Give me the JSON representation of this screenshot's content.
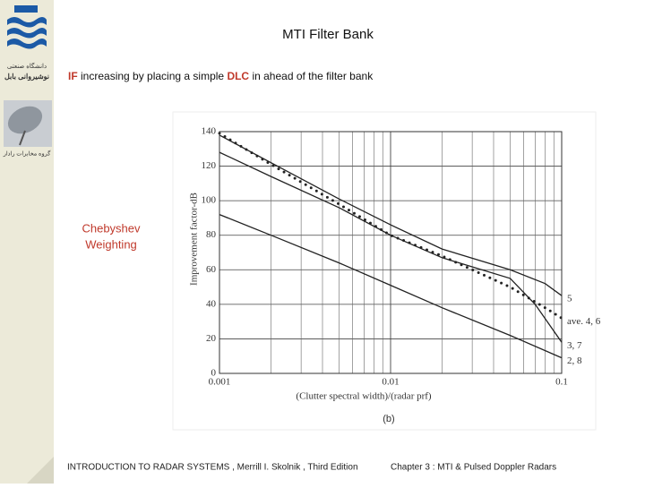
{
  "slide": {
    "title": "MTI Filter Bank",
    "subtitle": [
      "IF",
      " increasing by placing a simple ",
      "DLC",
      " in ahead of the filter bank"
    ],
    "highlight_color": "#c0392b",
    "side_note": [
      "Chebyshev",
      "Weighting"
    ],
    "footer_left": "INTRODUCTION TO  RADAR SYSTEMS , Merrill I. Skolnik , Third Edition",
    "footer_right": "Chapter 3 :   MTI  &  Pulsed Doppler Radars",
    "logo_text": [
      "دانشگاه صنعتی",
      "نوشیروانی بابل"
    ],
    "group_text": "گروه مخابرات رادار"
  },
  "chart_data": {
    "type": "line",
    "xlabel": "(Clutter spectral width)/(radar prf)",
    "ylabel": "Improvement factor-dB",
    "caption": "(b)",
    "xscale": "log",
    "xlim": [
      0.001,
      0.1
    ],
    "xticks": [
      0.001,
      0.01,
      0.1
    ],
    "x_minor_grid": [
      0.002,
      0.003,
      0.004,
      0.005,
      0.006,
      0.007,
      0.008,
      0.009,
      0.02,
      0.03,
      0.04,
      0.05,
      0.06,
      0.07,
      0.08,
      0.09
    ],
    "ylim": [
      0,
      140
    ],
    "yticks": [
      0,
      20,
      40,
      60,
      80,
      100,
      120,
      140
    ],
    "grid": true,
    "series": [
      {
        "name": "5",
        "color": "#222222",
        "dash": "solid",
        "x": [
          0.001,
          0.002,
          0.005,
          0.01,
          0.02,
          0.05,
          0.08,
          0.1
        ],
        "values": [
          138,
          122,
          101,
          86,
          72,
          60,
          52,
          45
        ]
      },
      {
        "name": "ave. 4, 6",
        "color": "#222222",
        "dash": "dotted",
        "x": [
          0.001,
          0.002,
          0.005,
          0.01,
          0.02,
          0.05,
          0.08,
          0.1
        ],
        "values": [
          139,
          121,
          98,
          80,
          68,
          50,
          38,
          32
        ]
      },
      {
        "name": "3, 7",
        "color": "#222222",
        "dash": "solid",
        "x": [
          0.001,
          0.002,
          0.005,
          0.01,
          0.02,
          0.05,
          0.07,
          0.1
        ],
        "values": [
          128,
          114,
          96,
          80,
          67,
          55,
          40,
          18
        ]
      },
      {
        "name": "2, 8",
        "color": "#222222",
        "dash": "solid",
        "x": [
          0.001,
          0.002,
          0.005,
          0.01,
          0.02,
          0.05,
          0.1
        ],
        "values": [
          92,
          80,
          64,
          51,
          38,
          22,
          9
        ]
      }
    ]
  }
}
